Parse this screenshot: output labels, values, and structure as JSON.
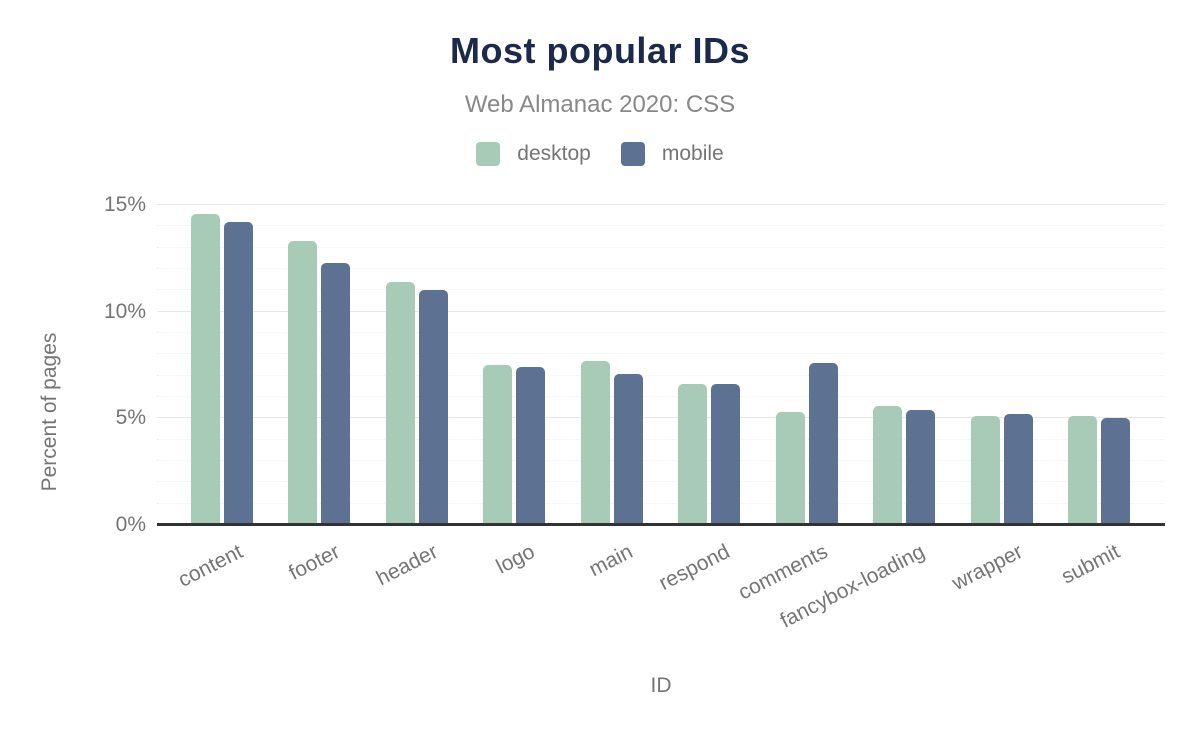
{
  "title": "Most popular IDs",
  "subtitle": "Web Almanac 2020: CSS",
  "colors": {
    "title": "#1b2a4a",
    "subtitle": "#888888",
    "axis_text": "#757575",
    "axis_line": "#333333",
    "gridline_major": "#e7e7e7",
    "gridline_minor": "#f0f0f0",
    "desktop": "#a8cbb8",
    "mobile": "#5d7292",
    "background": "#ffffff"
  },
  "chart_data": {
    "type": "bar",
    "title": "Most popular IDs",
    "subtitle": "Web Almanac 2020: CSS",
    "xlabel": "ID",
    "ylabel": "Percent of pages",
    "y_unit": "%",
    "ylim": [
      0,
      15.5
    ],
    "grid": "horizontal; minor gridlines every 1%, major every 5%",
    "legend_position": "top",
    "categories": [
      "content",
      "footer",
      "header",
      "logo",
      "main",
      "respond",
      "comments",
      "fancybox-loading",
      "wrapper",
      "submit"
    ],
    "series": [
      {
        "name": "desktop",
        "color": "#a8cbb8",
        "values": [
          14.6,
          13.3,
          11.4,
          7.5,
          7.7,
          6.6,
          5.3,
          5.6,
          5.1,
          5.1
        ]
      },
      {
        "name": "mobile",
        "color": "#5d7292",
        "values": [
          14.2,
          12.3,
          11.0,
          7.4,
          7.1,
          6.6,
          7.6,
          5.4,
          5.2,
          5.0
        ]
      }
    ],
    "y_axis": {
      "ticks": [
        {
          "label": "0%",
          "value": 0
        },
        {
          "label": "5%",
          "value": 5
        },
        {
          "label": "10%",
          "value": 10
        },
        {
          "label": "15%",
          "value": 15
        }
      ]
    }
  }
}
